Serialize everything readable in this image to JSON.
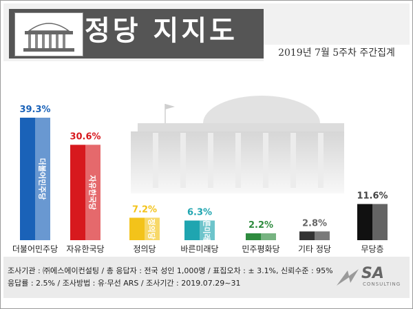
{
  "header": {
    "title": "정당 지지도",
    "subtitle": "2019년 7월 5주차 주간집계"
  },
  "footer": {
    "line1": "조사기관 : ㈜에스에이컨설팅 / 총 응답자 : 전국 성인 1,000명 / 표집오차 : ± 3.1%, 신뢰수준 : 95%",
    "line2": "응답률 : 2.5% / 조사방법 : 유·무선 ARS / 조사기간 : 2019.07.29~31",
    "company_logo": "SA",
    "company_logo_sub": "CONSULTING"
  },
  "chart_data": {
    "type": "bar",
    "title": "정당 지지도",
    "categories": [
      "더불어민주당",
      "자유한국당",
      "정의당",
      "바른미래당",
      "민주평화당",
      "기타 정당",
      "무당층"
    ],
    "values": [
      39.3,
      30.6,
      7.2,
      6.3,
      2.2,
      2.8,
      11.6
    ],
    "value_labels": [
      "39.3%",
      "30.6%",
      "7.2%",
      "6.3%",
      "2.2%",
      "2.8%",
      "11.6%"
    ],
    "bar_colors": [
      "#1a62b8",
      "#d7191e",
      "#f3c31a",
      "#1fa5b0",
      "#2e8b3e",
      "#333333",
      "#111111"
    ],
    "label_colors": [
      "#1a62b8",
      "#d7191e",
      "#f3c31a",
      "#1fa5b0",
      "#2e8b3e",
      "#666666",
      "#444444"
    ],
    "bar_inner_text": [
      "더불어민주당",
      "자유한국당",
      "정의당",
      "바른미래당",
      "",
      "",
      ""
    ],
    "grid": false,
    "legend": "none"
  }
}
